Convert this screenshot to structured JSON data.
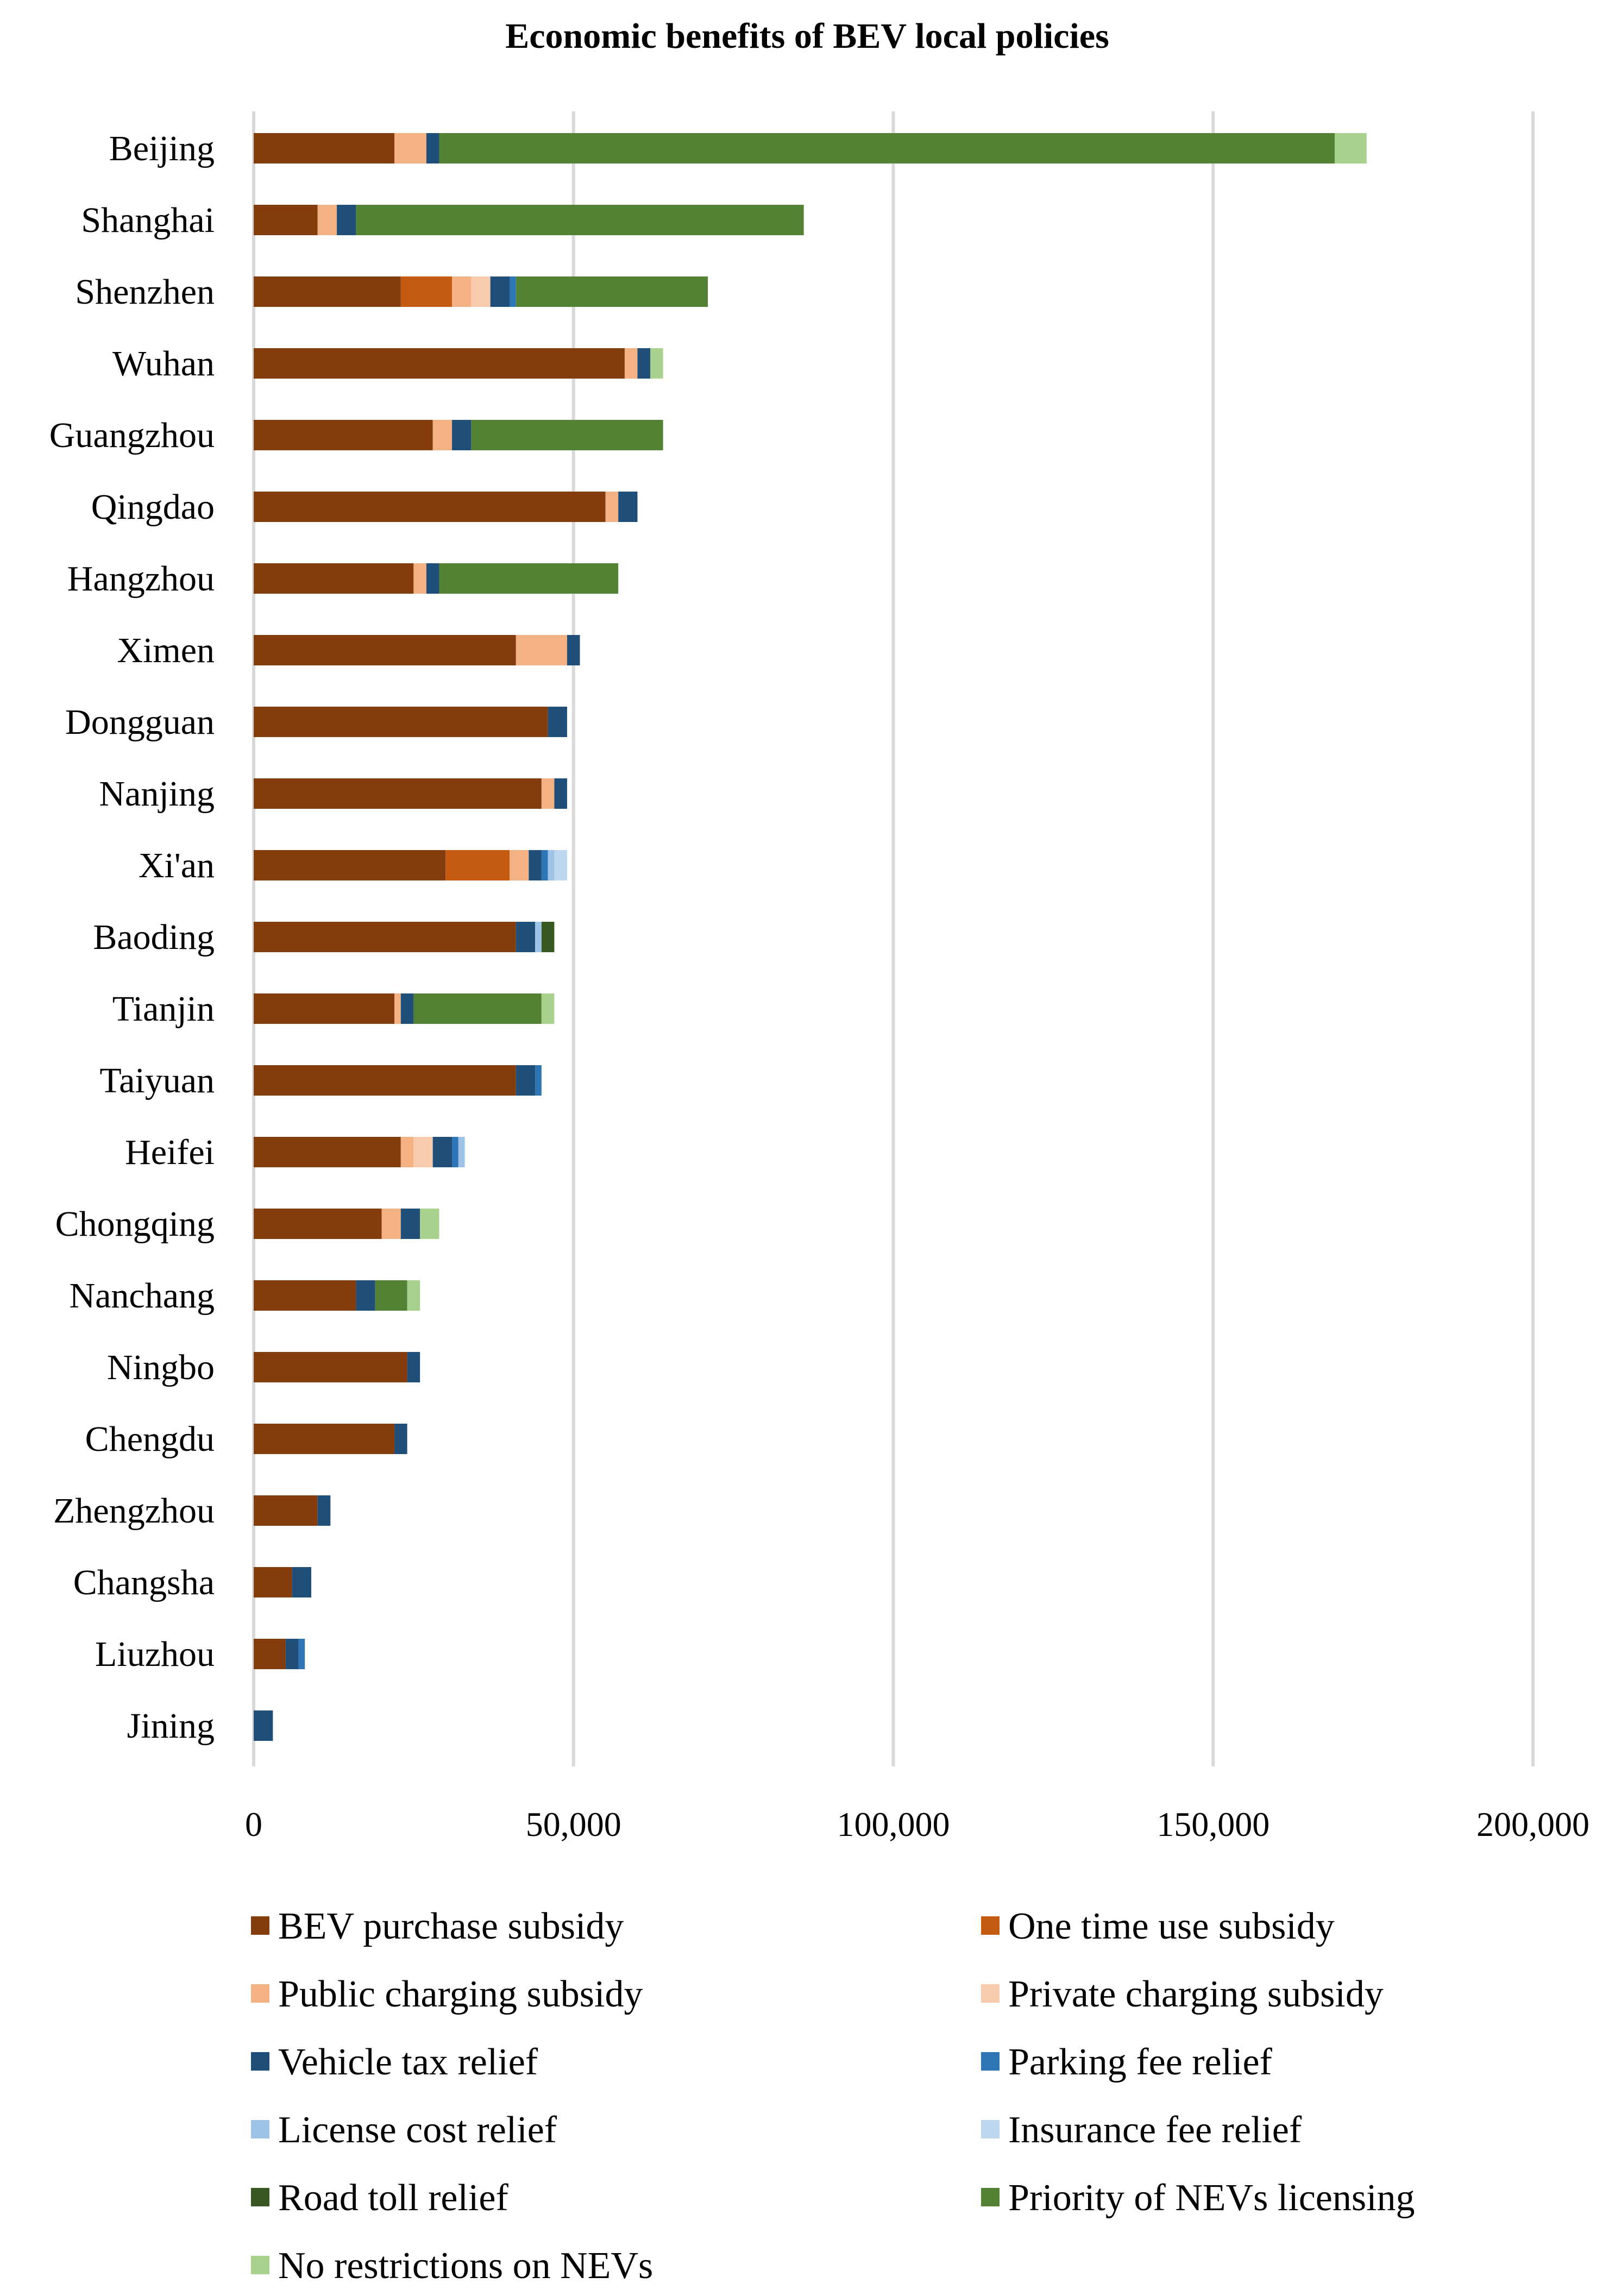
{
  "chart_data": {
    "type": "bar",
    "orientation": "horizontal",
    "stacked": true,
    "title": "Economic benefits of BEV local policies",
    "xlabel": "",
    "ylabel": "",
    "xlim": [
      0,
      200000
    ],
    "xticks": [
      0,
      50000,
      100000,
      150000,
      200000
    ],
    "xtick_labels": [
      "0",
      "50,000",
      "100,000",
      "150,000",
      "200,000"
    ],
    "grid": "vertical",
    "legend_position": "bottom",
    "categories": [
      "Beijing",
      "Shanghai",
      "Shenzhen",
      "Wuhan",
      "Guangzhou",
      "Qingdao",
      "Hangzhou",
      "Ximen",
      "Dongguan",
      "Nanjing",
      "Xi'an",
      "Baoding",
      "Tianjin",
      "Taiyuan",
      "Heifei",
      "Chongqing",
      "Nanchang",
      "Ningbo",
      "Chengdu",
      "Zhengzhou",
      "Changsha",
      "Liuzhou",
      "Jining"
    ],
    "series": [
      {
        "name": "BEV purchase subsidy",
        "color": "#843C0C",
        "values": [
          22000,
          10000,
          23000,
          58000,
          28000,
          55000,
          25000,
          41000,
          46000,
          45000,
          30000,
          41000,
          22000,
          41000,
          23000,
          20000,
          16000,
          24000,
          22000,
          10000,
          6000,
          5000,
          0
        ]
      },
      {
        "name": "One time use subsidy",
        "color": "#C55A11",
        "values": [
          0,
          0,
          8000,
          0,
          0,
          0,
          0,
          0,
          0,
          0,
          10000,
          0,
          0,
          0,
          0,
          0,
          0,
          0,
          0,
          0,
          0,
          0,
          0
        ]
      },
      {
        "name": "Public charging subsidy",
        "color": "#F4B183",
        "values": [
          5000,
          3000,
          3000,
          2000,
          3000,
          2000,
          2000,
          8000,
          0,
          2000,
          3000,
          0,
          1000,
          0,
          2000,
          3000,
          0,
          0,
          0,
          0,
          0,
          0,
          0
        ]
      },
      {
        "name": "Private charging subsidy",
        "color": "#F8CBAD",
        "values": [
          0,
          0,
          3000,
          0,
          0,
          0,
          0,
          0,
          0,
          0,
          0,
          0,
          0,
          0,
          3000,
          0,
          0,
          0,
          0,
          0,
          0,
          0,
          0
        ]
      },
      {
        "name": "Vehicle tax relief",
        "color": "#1F4E79",
        "values": [
          2000,
          3000,
          3000,
          2000,
          3000,
          3000,
          2000,
          2000,
          3000,
          2000,
          2000,
          3000,
          2000,
          3000,
          3000,
          3000,
          3000,
          2000,
          2000,
          2000,
          3000,
          2000,
          3000
        ]
      },
      {
        "name": "Parking fee relief",
        "color": "#2E75B6",
        "values": [
          0,
          0,
          1000,
          0,
          0,
          0,
          0,
          0,
          0,
          0,
          1000,
          0,
          0,
          1000,
          1000,
          0,
          0,
          0,
          0,
          0,
          0,
          1000,
          0
        ]
      },
      {
        "name": "License cost relief",
        "color": "#9DC3E6",
        "values": [
          0,
          0,
          0,
          0,
          0,
          0,
          0,
          0,
          0,
          0,
          1000,
          1000,
          0,
          0,
          1000,
          0,
          0,
          0,
          0,
          0,
          0,
          0,
          0
        ]
      },
      {
        "name": "Insurance fee relief",
        "color": "#BDD7EE",
        "values": [
          0,
          0,
          0,
          0,
          0,
          0,
          0,
          0,
          0,
          0,
          2000,
          0,
          0,
          0,
          0,
          0,
          0,
          0,
          0,
          0,
          0,
          0,
          0
        ]
      },
      {
        "name": "Road toll relief",
        "color": "#385723",
        "values": [
          0,
          0,
          0,
          0,
          0,
          0,
          0,
          0,
          0,
          0,
          0,
          2000,
          0,
          0,
          0,
          0,
          0,
          0,
          0,
          0,
          0,
          0,
          0
        ]
      },
      {
        "name": "Priority of NEVs licensing",
        "color": "#548235",
        "values": [
          140000,
          70000,
          30000,
          0,
          30000,
          0,
          28000,
          0,
          0,
          0,
          0,
          0,
          20000,
          0,
          0,
          0,
          5000,
          0,
          0,
          0,
          0,
          0,
          0
        ]
      },
      {
        "name": "No restrictions on NEVs",
        "color": "#A9D18E",
        "values": [
          5000,
          0,
          0,
          2000,
          0,
          0,
          0,
          0,
          0,
          0,
          0,
          0,
          2000,
          0,
          0,
          3000,
          2000,
          0,
          0,
          0,
          0,
          0,
          0
        ]
      }
    ]
  }
}
